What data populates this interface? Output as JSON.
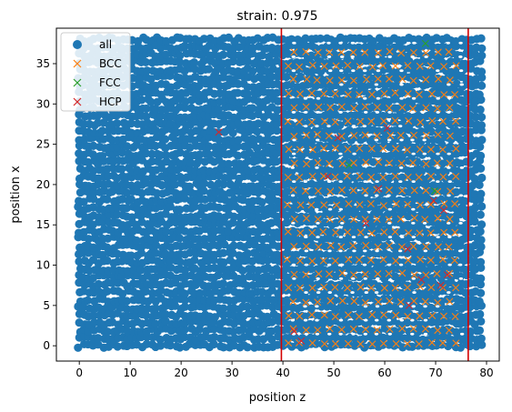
{
  "chart_data": {
    "type": "scatter",
    "title": "strain: 0.975",
    "xlabel": "position z",
    "ylabel": "position x",
    "xlim": [
      -4.5,
      82.5
    ],
    "ylim": [
      -1.9,
      39.4
    ],
    "x_ticks": [
      0,
      10,
      20,
      30,
      40,
      50,
      60,
      70,
      80
    ],
    "y_ticks": [
      0,
      5,
      10,
      15,
      20,
      25,
      30,
      35
    ],
    "grid": false,
    "legend_position": "top-left",
    "vertical_lines": [
      {
        "x": 39.7,
        "color": "#d40000"
      },
      {
        "x": 76.4,
        "color": "#d40000"
      }
    ],
    "series": [
      {
        "name": "all",
        "marker": "circle",
        "color": "#1f77b4",
        "dense_region": {
          "x": [
            0,
            79
          ],
          "y": [
            0,
            38
          ]
        },
        "density_note_visible": false
      },
      {
        "name": "BCC",
        "marker": "x",
        "color": "#ff7f0e",
        "lattice_region": {
          "x": [
            41,
            75
          ],
          "y": [
            0,
            38
          ]
        }
      },
      {
        "name": "FCC",
        "marker": "x",
        "color": "#2ca02c",
        "points": [
          [
            53,
            22.4
          ],
          [
            68,
            37.5
          ],
          [
            69.8,
            19.2
          ]
        ]
      },
      {
        "name": "HCP",
        "marker": "x",
        "color": "#d62728",
        "points": [
          [
            27.4,
            26.5
          ],
          [
            50.8,
            25.8
          ],
          [
            60.5,
            27.0
          ],
          [
            48.8,
            21.0
          ],
          [
            58.8,
            19.5
          ],
          [
            69.6,
            18.0
          ],
          [
            71.6,
            16.8
          ],
          [
            64.5,
            12.0
          ],
          [
            67.2,
            8.2
          ],
          [
            72.3,
            8.8
          ],
          [
            71.0,
            7.5
          ],
          [
            42.2,
            1.8
          ],
          [
            43.6,
            0.6
          ],
          [
            64.8,
            5.0
          ],
          [
            56.3,
            15.2
          ]
        ]
      }
    ]
  }
}
